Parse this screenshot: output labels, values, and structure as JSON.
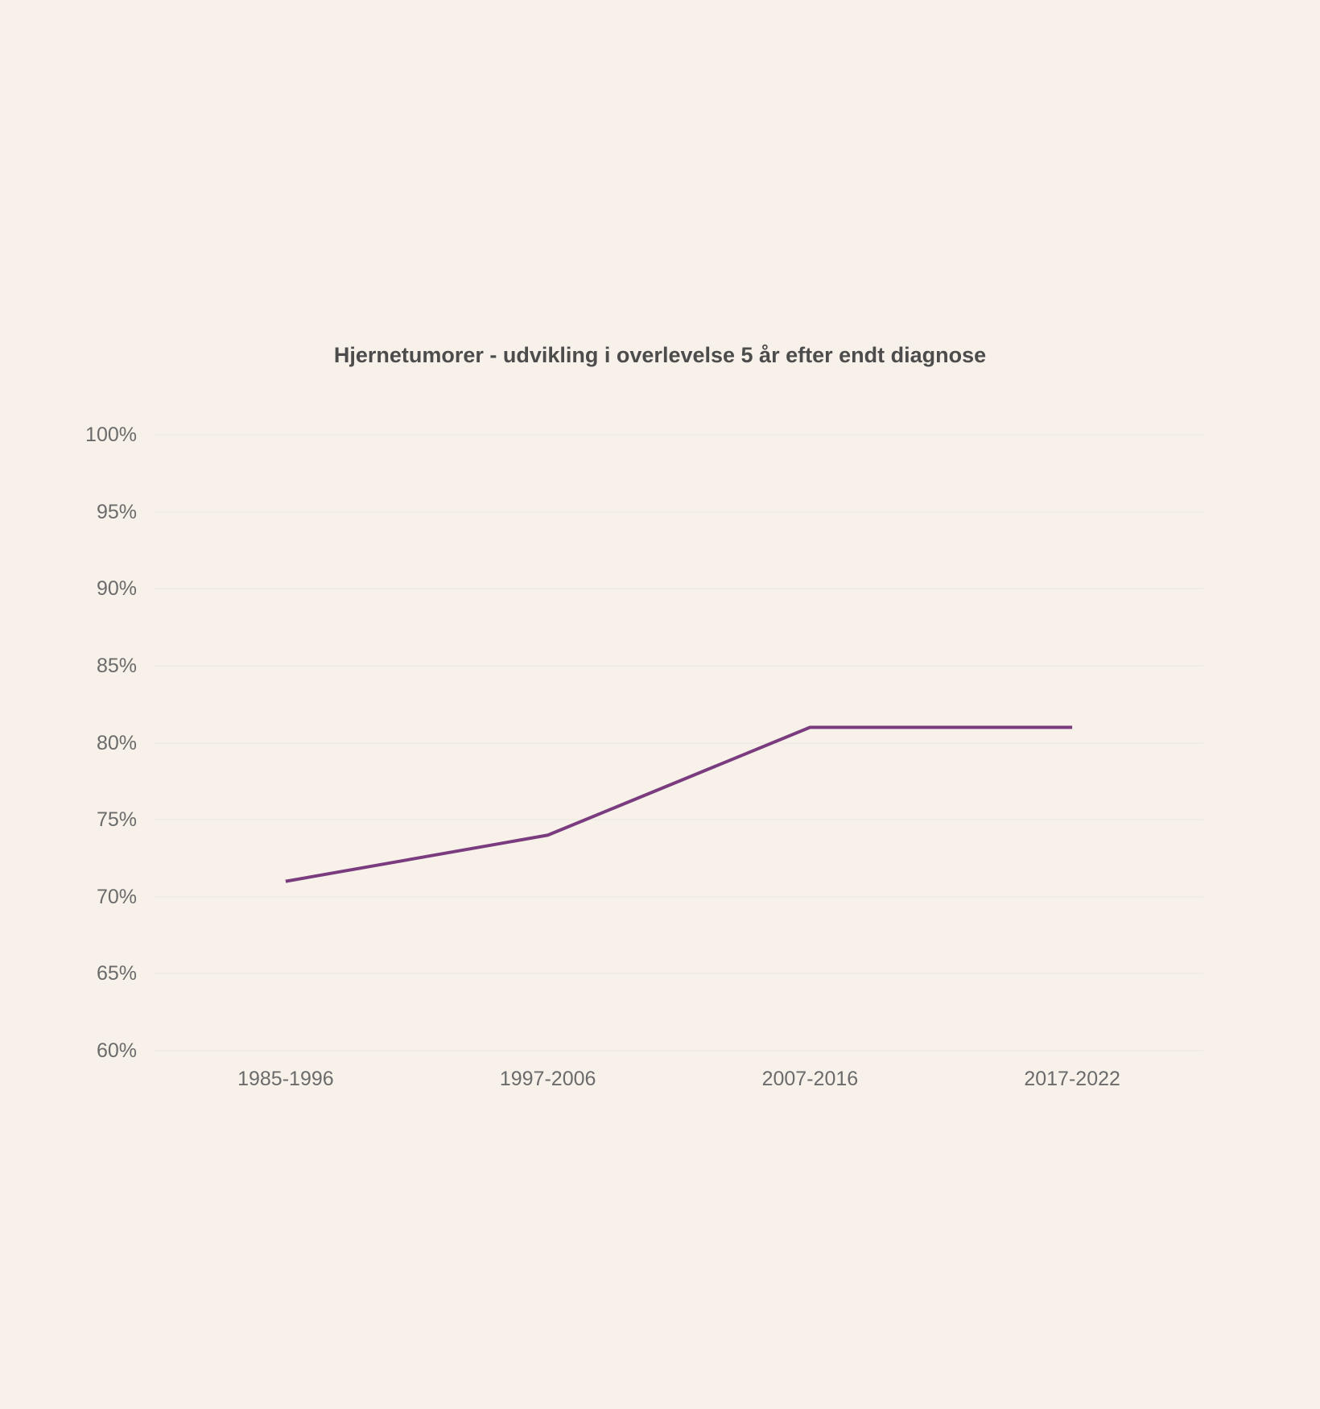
{
  "chart_data": {
    "type": "line",
    "title": "Hjernetumorer - udvikling i overlevelse 5 år efter endt diagnose",
    "categories": [
      "1985-1996",
      "1997-2006",
      "2007-2016",
      "2017-2022"
    ],
    "values": [
      71,
      74,
      81,
      81
    ],
    "xlabel": "",
    "ylabel": "",
    "ylim": [
      60,
      100
    ],
    "ytick_step": 5,
    "ytick_labels": [
      "100%",
      "95%",
      "90%",
      "85%",
      "80%",
      "75%",
      "70%",
      "65%",
      "60%"
    ],
    "grid": "horizontal-only",
    "legend": "none"
  },
  "colors": {
    "background": "#F7F1EA",
    "line": "#7A3C7E",
    "title_text": "#4C4C4C",
    "axis_text": "#6B6B6B",
    "gridline": "#F0EBE4"
  }
}
